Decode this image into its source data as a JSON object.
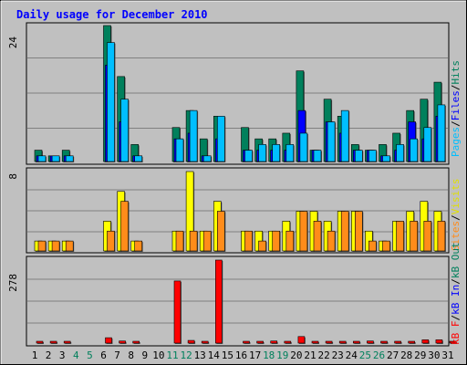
{
  "chart_data": [
    {
      "type": "bar",
      "title": "Daily usage for December 2010",
      "categories": [
        "1",
        "2",
        "3",
        "4",
        "5",
        "6",
        "7",
        "8",
        "9",
        "10",
        "11",
        "12",
        "13",
        "14",
        "15",
        "16",
        "17",
        "18",
        "19",
        "20",
        "21",
        "22",
        "23",
        "24",
        "25",
        "26",
        "27",
        "28",
        "29",
        "30",
        "31"
      ],
      "weekend_days": [
        "4",
        "5",
        "11",
        "12",
        "18",
        "19",
        "25",
        "26"
      ],
      "ymax_label": "24",
      "ylim": [
        0,
        24
      ],
      "grid": true,
      "series": [
        {
          "name": "Hits",
          "color": "#00805c",
          "values": [
            2,
            1,
            2,
            0,
            0,
            24,
            15,
            3,
            0,
            0,
            6,
            9,
            4,
            8,
            0,
            6,
            4,
            4,
            5,
            16,
            2,
            11,
            8,
            3,
            2,
            3,
            5,
            9,
            11,
            14,
            0
          ]
        },
        {
          "name": "Files",
          "color": "#0000ff",
          "values": [
            1,
            1,
            1,
            0,
            0,
            17,
            7,
            1,
            0,
            0,
            4,
            5,
            1,
            4,
            0,
            2,
            2,
            2,
            2,
            9,
            2,
            7,
            5,
            2,
            2,
            1,
            2,
            7,
            4,
            8,
            0
          ]
        },
        {
          "name": "Pages",
          "color": "#00bfff",
          "values": [
            1,
            1,
            1,
            0,
            0,
            21,
            11,
            1,
            0,
            0,
            4,
            9,
            1,
            8,
            0,
            2,
            3,
            3,
            3,
            5,
            2,
            7,
            9,
            2,
            2,
            1,
            3,
            4,
            6,
            10,
            0
          ]
        }
      ]
    },
    {
      "type": "bar",
      "categories": [
        "1",
        "2",
        "3",
        "4",
        "5",
        "6",
        "7",
        "8",
        "9",
        "10",
        "11",
        "12",
        "13",
        "14",
        "15",
        "16",
        "17",
        "18",
        "19",
        "20",
        "21",
        "22",
        "23",
        "24",
        "25",
        "26",
        "27",
        "28",
        "29",
        "30",
        "31"
      ],
      "ymax_label": "8",
      "ylim": [
        0,
        8
      ],
      "grid": true,
      "series": [
        {
          "name": "Visits",
          "color": "#ffff00",
          "values": [
            1,
            1,
            1,
            0,
            0,
            3,
            6,
            1,
            0,
            0,
            2,
            8,
            2,
            5,
            0,
            2,
            2,
            2,
            3,
            4,
            4,
            3,
            4,
            4,
            2,
            1,
            3,
            4,
            5,
            4,
            0
          ]
        },
        {
          "name": "Sites",
          "color": "#ff8c1a",
          "values": [
            1,
            1,
            1,
            0,
            0,
            2,
            5,
            1,
            0,
            0,
            2,
            2,
            2,
            4,
            0,
            2,
            1,
            2,
            2,
            4,
            3,
            2,
            4,
            4,
            1,
            1,
            3,
            3,
            3,
            3,
            0
          ]
        }
      ]
    },
    {
      "type": "bar",
      "categories": [
        "1",
        "2",
        "3",
        "4",
        "5",
        "6",
        "7",
        "8",
        "9",
        "10",
        "11",
        "12",
        "13",
        "14",
        "15",
        "16",
        "17",
        "18",
        "19",
        "20",
        "21",
        "22",
        "23",
        "24",
        "25",
        "26",
        "27",
        "28",
        "29",
        "30",
        "31"
      ],
      "ymax_label": "278",
      "ylim": [
        0,
        278
      ],
      "grid": true,
      "series": [
        {
          "name": "kB F",
          "color": "#ff0000",
          "values": [
            2,
            2,
            2,
            0,
            0,
            18,
            7,
            2,
            0,
            0,
            208,
            9,
            2,
            278,
            0,
            2,
            2,
            7,
            2,
            22,
            2,
            2,
            2,
            2,
            7,
            2,
            2,
            2,
            11,
            11,
            2
          ]
        }
      ]
    }
  ],
  "legend": {
    "top": [
      "Pages",
      "/",
      "Files",
      "/",
      "Hits"
    ],
    "middle": [
      "Sites",
      "/",
      "Visits"
    ],
    "bottom": [
      "kB F",
      "/",
      "kB In",
      "/",
      "kB Out"
    ]
  },
  "colors": {
    "title": "#0000ff",
    "hits": "#00805c",
    "files": "#0000ff",
    "pages": "#00bfff",
    "visits": "#ffff00",
    "sites": "#ff8c1a",
    "kbf": "#ff0000",
    "kbin": "#0000ff",
    "kbout": "#00805c",
    "weekend_label": "#00805c",
    "panel_bg": "#c0c0c0"
  }
}
